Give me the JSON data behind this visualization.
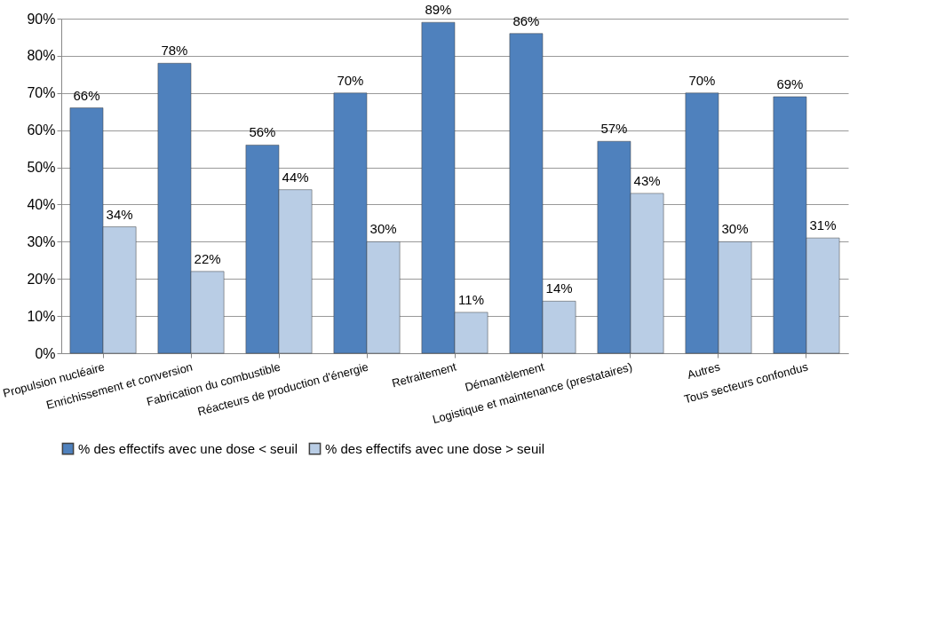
{
  "chart_data": {
    "type": "bar",
    "categories": [
      "Propulsion nucléaire",
      "Enrichissement et conversion",
      "Fabrication du combustible",
      "Réacteurs de production d'énergie",
      "Retraitement",
      "Démantèlement",
      "Logistique et maintenance (prestataires)",
      "Autres",
      "Tous secteurs confondus"
    ],
    "series": [
      {
        "name": "% des effectifs avec une dose < seuil",
        "color": "#4f81bd",
        "values": [
          66,
          78,
          56,
          70,
          89,
          86,
          57,
          70,
          69
        ],
        "value_labels": [
          "66%",
          "78%",
          "56%",
          "70%",
          "89%",
          "86%",
          "57%",
          "70%",
          "69%"
        ]
      },
      {
        "name": "% des effectifs avec une dose > seuil",
        "color": "#b9cde5",
        "values": [
          34,
          22,
          44,
          30,
          11,
          14,
          43,
          30,
          31
        ],
        "value_labels": [
          "34%",
          "22%",
          "44%",
          "30%",
          "11%",
          "14%",
          "43%",
          "30%",
          "31%"
        ]
      }
    ],
    "ylim": [
      0,
      90
    ],
    "yticks": [
      {
        "value": 0,
        "label": "0%"
      },
      {
        "value": 10,
        "label": "10%"
      },
      {
        "value": 20,
        "label": "20%"
      },
      {
        "value": 30,
        "label": "30%"
      },
      {
        "value": 40,
        "label": "40%"
      },
      {
        "value": 50,
        "label": "50%"
      },
      {
        "value": 60,
        "label": "60%"
      },
      {
        "value": 70,
        "label": "70%"
      },
      {
        "value": 80,
        "label": "80%"
      },
      {
        "value": 90,
        "label": "90%"
      }
    ],
    "grid": "y",
    "legend": "bottom"
  }
}
